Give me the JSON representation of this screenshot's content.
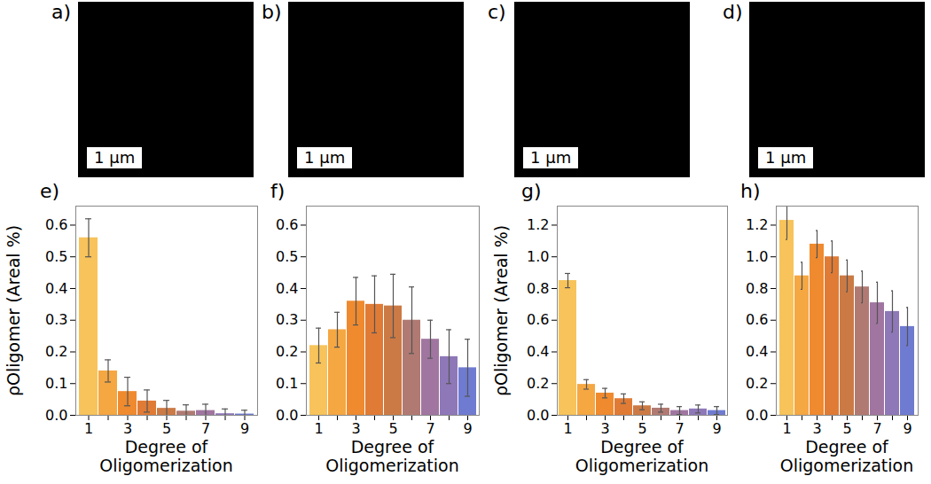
{
  "images": [
    {
      "label": "a)",
      "scale_bar": "1 µm"
    },
    {
      "label": "b)",
      "scale_bar": "1 µm"
    },
    {
      "label": "c)",
      "scale_bar": "1 µm"
    },
    {
      "label": "d)",
      "scale_bar": "1 µm"
    }
  ],
  "chart_data": [
    {
      "type": "bar",
      "title": "e)",
      "x_label": "Degree of Oligomerization",
      "y_label": "ρOligomer (Areal %)",
      "categories": [
        "1",
        null,
        "3",
        null,
        "5",
        null,
        "7",
        null,
        "9"
      ],
      "values": [
        0.56,
        0.14,
        0.075,
        0.045,
        0.022,
        0.013,
        0.015,
        0.005,
        0.004
      ],
      "errors": [
        0.06,
        0.035,
        0.045,
        0.035,
        0.025,
        0.02,
        0.02,
        0.015,
        0.012
      ],
      "colors": [
        "#f7c35a",
        "#f5a742",
        "#ef8a2f",
        "#e07b35",
        "#cc7a45",
        "#b07a72",
        "#a076a0",
        "#8e78b8",
        "#6f7bd0"
      ],
      "ylim": [
        0,
        0.66
      ],
      "yticks": [
        {
          "value": 0,
          "label": "0.0"
        },
        {
          "value": 0.1,
          "label": "0.1"
        },
        {
          "value": 0.2,
          "label": "0.2"
        },
        {
          "value": 0.3,
          "label": "0.3"
        },
        {
          "value": 0.4,
          "label": "0.4"
        },
        {
          "value": 0.5,
          "label": "0.5"
        },
        {
          "value": 0.6,
          "label": "0.6"
        }
      ]
    },
    {
      "type": "bar",
      "title": "f)",
      "x_label": "Degree of Oligomerization",
      "categories": [
        "1",
        null,
        "3",
        null,
        "5",
        null,
        "7",
        null,
        "9"
      ],
      "values": [
        0.22,
        0.27,
        0.36,
        0.35,
        0.345,
        0.3,
        0.24,
        0.185,
        0.15
      ],
      "errors": [
        0.055,
        0.055,
        0.075,
        0.09,
        0.1,
        0.105,
        0.06,
        0.085,
        0.09
      ],
      "colors": [
        "#f7c35a",
        "#f5a742",
        "#ef8a2f",
        "#e07b35",
        "#cc7a45",
        "#b07a72",
        "#a076a0",
        "#8e78b8",
        "#6f7bd0"
      ],
      "ylim": [
        0,
        0.66
      ],
      "yticks": [
        {
          "value": 0,
          "label": "0.0"
        },
        {
          "value": 0.1,
          "label": "0.1"
        },
        {
          "value": 0.2,
          "label": "0.2"
        },
        {
          "value": 0.3,
          "label": "0.3"
        },
        {
          "value": 0.4,
          "label": "0.4"
        },
        {
          "value": 0.5,
          "label": "0.5"
        },
        {
          "value": 0.6,
          "label": "0.6"
        }
      ]
    },
    {
      "type": "bar",
      "title": "g)",
      "x_label": "Degree of Oligomerization",
      "y_label": "ρOligomer (Areal %)",
      "categories": [
        "1",
        null,
        "3",
        null,
        "5",
        null,
        "7",
        null,
        "9"
      ],
      "values": [
        0.85,
        0.195,
        0.14,
        0.105,
        0.06,
        0.045,
        0.03,
        0.04,
        0.03
      ],
      "errors": [
        0.045,
        0.03,
        0.03,
        0.03,
        0.025,
        0.025,
        0.025,
        0.025,
        0.025
      ],
      "colors": [
        "#f7c35a",
        "#f5a742",
        "#ef8a2f",
        "#e07b35",
        "#cc7a45",
        "#b07a72",
        "#a076a0",
        "#8e78b8",
        "#6f7bd0"
      ],
      "ylim": [
        0,
        1.32
      ],
      "yticks": [
        {
          "value": 0,
          "label": "0.0"
        },
        {
          "value": 0.2,
          "label": "0.2"
        },
        {
          "value": 0.4,
          "label": "0.4"
        },
        {
          "value": 0.6,
          "label": "0.6"
        },
        {
          "value": 0.8,
          "label": "0.8"
        },
        {
          "value": 1,
          "label": "1.0"
        },
        {
          "value": 1.2,
          "label": "1.2"
        }
      ]
    },
    {
      "type": "bar",
      "title": "h)",
      "x_label": "Degree of Oligomerization",
      "categories": [
        "1",
        null,
        "3",
        null,
        "5",
        null,
        "7",
        null,
        "9"
      ],
      "values": [
        1.23,
        0.88,
        1.08,
        1.0,
        0.88,
        0.81,
        0.71,
        0.655,
        0.56
      ],
      "errors": [
        0.12,
        0.085,
        0.085,
        0.1,
        0.1,
        0.1,
        0.13,
        0.13,
        0.12
      ],
      "colors": [
        "#f7c35a",
        "#f5a742",
        "#ef8a2f",
        "#e07b35",
        "#cc7a45",
        "#b07a72",
        "#a076a0",
        "#8e78b8",
        "#6f7bd0"
      ],
      "ylim": [
        0,
        1.32
      ],
      "yticks": [
        {
          "value": 0,
          "label": "0.0"
        },
        {
          "value": 0.2,
          "label": "0.2"
        },
        {
          "value": 0.4,
          "label": "0.4"
        },
        {
          "value": 0.6,
          "label": "0.6"
        },
        {
          "value": 0.8,
          "label": "0.8"
        },
        {
          "value": 1,
          "label": "1.0"
        },
        {
          "value": 1.2,
          "label": "1.2"
        }
      ]
    }
  ]
}
